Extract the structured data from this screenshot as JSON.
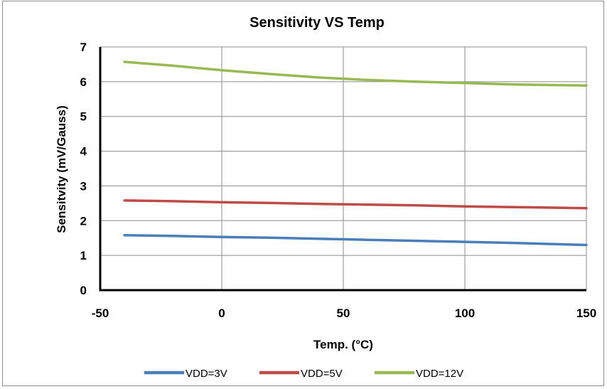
{
  "chart_data": {
    "type": "line",
    "title": "Sensitivity VS Temp",
    "xlabel": "Temp. (°C)",
    "ylabel": "Sensitvity (mV/Gauss)",
    "xlim": [
      -50,
      150
    ],
    "ylim": [
      0,
      7
    ],
    "x_ticks": [
      -50,
      0,
      50,
      100,
      150
    ],
    "y_ticks": [
      0,
      1,
      2,
      3,
      4,
      5,
      6,
      7
    ],
    "grid": true,
    "legend_position": "bottom",
    "x": [
      -40,
      -20,
      0,
      20,
      40,
      60,
      80,
      100,
      120,
      150
    ],
    "series": [
      {
        "name": "VDD=3V",
        "color": "#4a7ebb",
        "values": [
          1.58,
          1.56,
          1.53,
          1.51,
          1.48,
          1.45,
          1.42,
          1.39,
          1.36,
          1.3
        ]
      },
      {
        "name": "VDD=5V",
        "color": "#be4b48",
        "values": [
          2.58,
          2.56,
          2.53,
          2.51,
          2.48,
          2.46,
          2.44,
          2.41,
          2.39,
          2.36
        ]
      },
      {
        "name": "VDD=12V",
        "color": "#98b954",
        "values": [
          6.57,
          6.46,
          6.33,
          6.22,
          6.12,
          6.05,
          6.0,
          5.96,
          5.92,
          5.89
        ]
      }
    ]
  }
}
